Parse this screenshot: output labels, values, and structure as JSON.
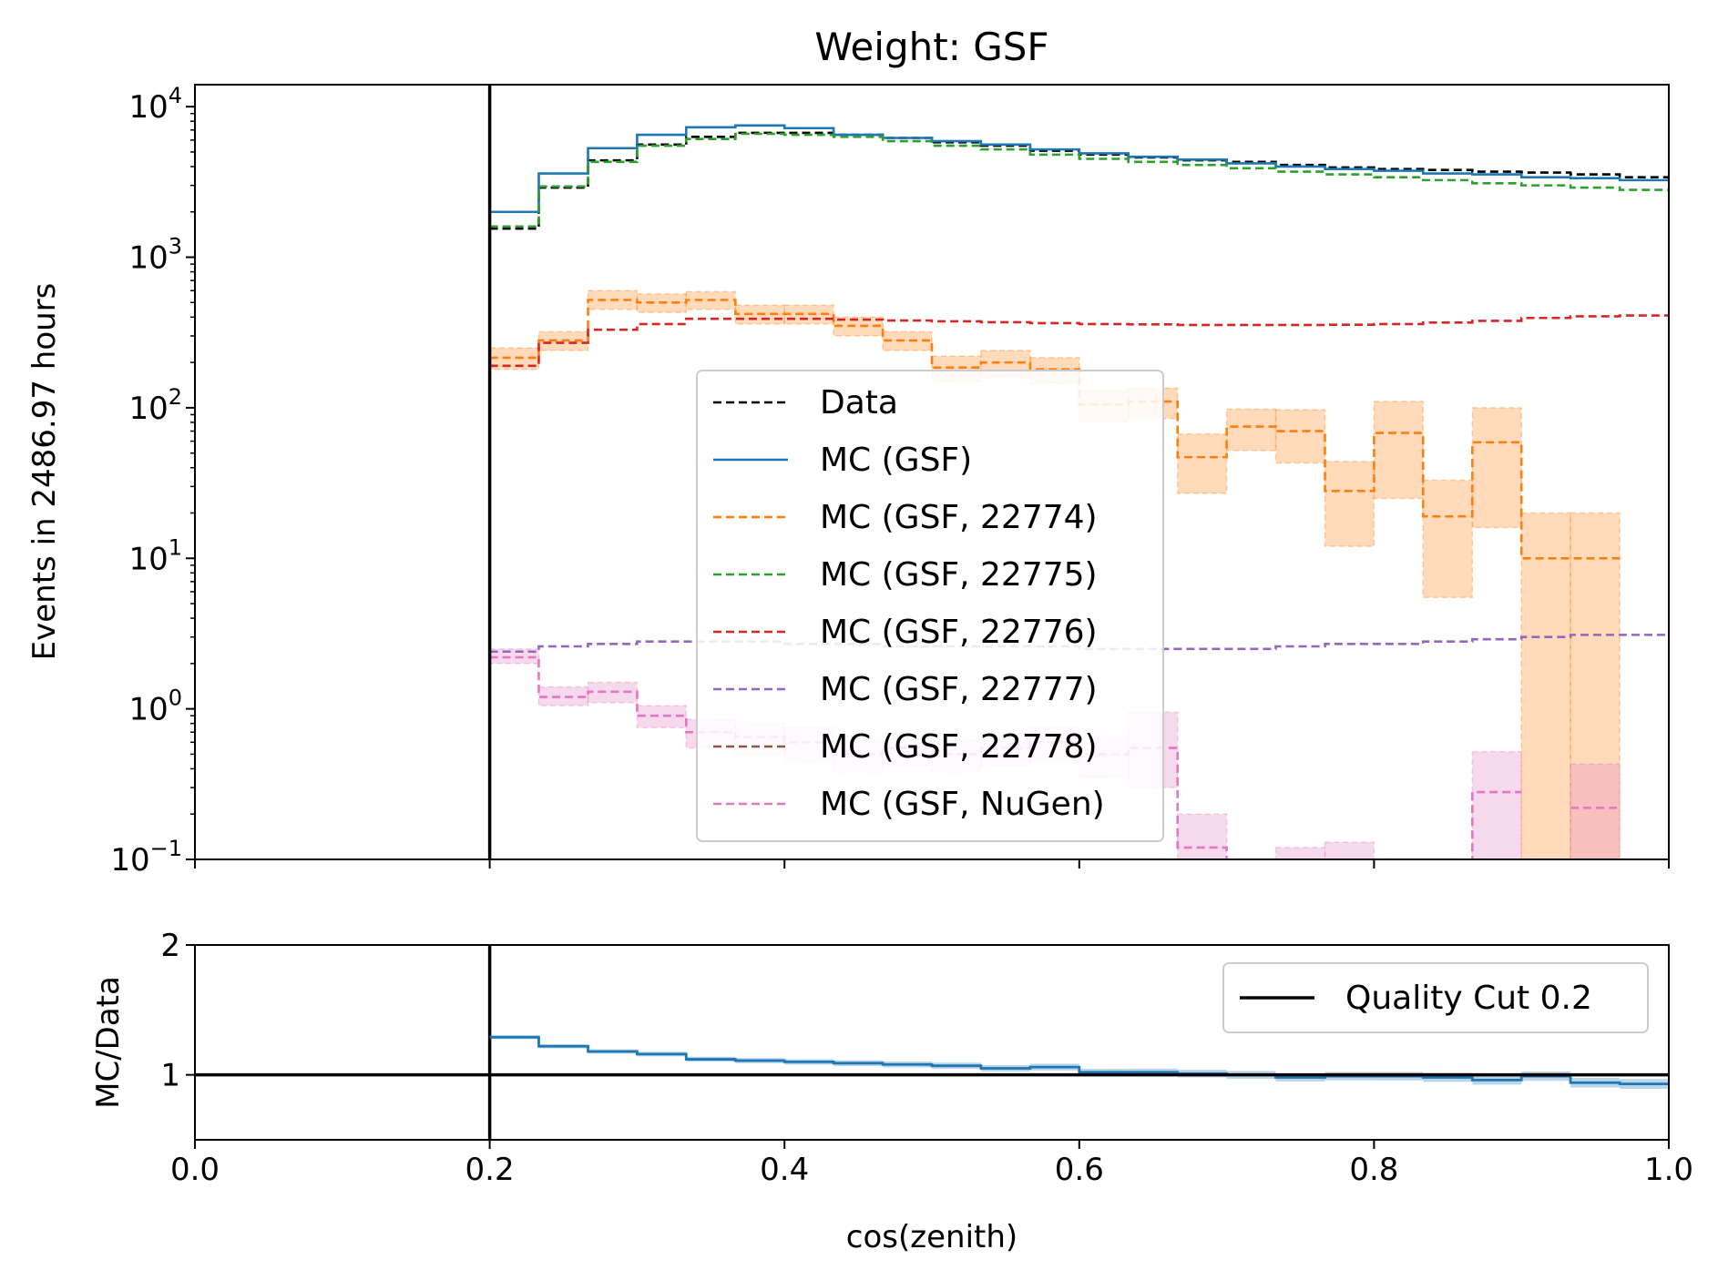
{
  "chart_data": [
    {
      "type": "line",
      "title": "Weight: GSF",
      "ylabel": "Events in 2486.97 hours",
      "xlabel": "",
      "xlim": [
        0.0,
        1.0
      ],
      "ylim": [
        0.1,
        14000
      ],
      "yscale": "log",
      "grid": false,
      "legend_position": "center",
      "y_tick_labels": [
        "10^4",
        "10^3",
        "10^2",
        "10^1",
        "10^0",
        "10^-1"
      ],
      "bin_edges": [
        0.2,
        0.2333,
        0.2667,
        0.3,
        0.3333,
        0.3667,
        0.4,
        0.4333,
        0.4667,
        0.5,
        0.5333,
        0.5667,
        0.6,
        0.6333,
        0.6667,
        0.7,
        0.7333,
        0.7667,
        0.8,
        0.8333,
        0.8667,
        0.9,
        0.9333,
        0.9667,
        1.0
      ],
      "series": [
        {
          "name": "Data",
          "color": "#000000",
          "dashed": true,
          "values": [
            1550,
            2900,
            4400,
            5600,
            6300,
            6700,
            6700,
            6500,
            6200,
            5800,
            5500,
            5100,
            4800,
            4600,
            4400,
            4300,
            4100,
            3950,
            3850,
            3800,
            3700,
            3650,
            3550,
            3400
          ]
        },
        {
          "name": "MC (GSF)",
          "color": "#1f77b4",
          "dashed": false,
          "values": [
            2000,
            3600,
            5300,
            6500,
            7300,
            7500,
            7200,
            6500,
            6200,
            5900,
            5600,
            5200,
            4900,
            4650,
            4450,
            4200,
            4000,
            3850,
            3750,
            3600,
            3550,
            3400,
            3350,
            3250
          ]
        },
        {
          "name": "MC (GSF, 22774)",
          "color": "#ff7f0e",
          "dashed": true,
          "values": [
            215,
            280,
            520,
            500,
            520,
            420,
            420,
            350,
            280,
            185,
            200,
            180,
            105,
            110,
            47,
            75,
            70,
            28,
            68,
            19,
            59,
            10,
            10,
            null
          ],
          "band_low": [
            180,
            240,
            450,
            430,
            450,
            360,
            360,
            300,
            240,
            150,
            160,
            145,
            80,
            85,
            27,
            52,
            43,
            12,
            25,
            5.5,
            16,
            0.1,
            0.1,
            null
          ],
          "band_high": [
            250,
            320,
            600,
            570,
            590,
            480,
            480,
            400,
            320,
            220,
            240,
            215,
            130,
            135,
            67,
            98,
            97,
            44,
            110,
            33,
            100,
            20,
            20,
            null
          ]
        },
        {
          "name": "MC (GSF, 22775)",
          "color": "#2ca02c",
          "dashed": true,
          "values": [
            1600,
            2950,
            4300,
            5500,
            6100,
            6600,
            6500,
            6300,
            5900,
            5500,
            5200,
            4800,
            4500,
            4300,
            4100,
            3900,
            3700,
            3550,
            3400,
            3250,
            3100,
            3000,
            2900,
            2800
          ]
        },
        {
          "name": "MC (GSF, 22776)",
          "color": "#d62728",
          "dashed": true,
          "values": [
            190,
            270,
            330,
            360,
            390,
            390,
            390,
            385,
            380,
            375,
            370,
            365,
            360,
            358,
            355,
            355,
            355,
            356,
            360,
            368,
            378,
            395,
            405,
            410
          ]
        },
        {
          "name": "MC (GSF, 22777)",
          "color": "#9467bd",
          "dashed": true,
          "values": [
            2.4,
            2.6,
            2.7,
            2.8,
            2.8,
            2.8,
            2.7,
            2.7,
            2.6,
            2.6,
            2.6,
            2.6,
            2.5,
            2.5,
            2.5,
            2.5,
            2.6,
            2.7,
            2.7,
            2.8,
            2.9,
            3.0,
            3.1,
            3.1
          ]
        },
        {
          "name": "MC (GSF, 22778)",
          "color": "#8c564b",
          "dashed": true,
          "values": [
            null,
            null,
            null,
            null,
            null,
            null,
            null,
            null,
            null,
            null,
            null,
            null,
            null,
            null,
            null,
            null,
            null,
            null,
            null,
            null,
            null,
            null,
            null,
            null
          ]
        },
        {
          "name": "MC (GSF, NuGen)",
          "color": "#e377c2",
          "dashed": true,
          "values": [
            2.2,
            1.2,
            1.3,
            0.9,
            0.7,
            0.65,
            0.6,
            0.5,
            0.55,
            0.5,
            0.55,
            0.6,
            0.5,
            0.55,
            0.12,
            0.07,
            0.07,
            0.09,
            0.06,
            0.07,
            0.28,
            null,
            0.22,
            null
          ],
          "band_low": [
            2.0,
            1.05,
            1.1,
            0.75,
            0.55,
            0.5,
            0.45,
            0.38,
            0.42,
            0.38,
            0.42,
            0.45,
            0.35,
            0.3,
            0.06,
            0.04,
            0.04,
            0.05,
            0.03,
            0.04,
            0.1,
            null,
            0.1,
            null
          ],
          "band_high": [
            2.5,
            1.4,
            1.5,
            1.05,
            0.85,
            0.8,
            0.75,
            0.62,
            0.68,
            0.62,
            0.68,
            0.75,
            0.65,
            0.95,
            0.2,
            0.1,
            0.12,
            0.13,
            0.1,
            0.1,
            0.52,
            null,
            0.43,
            null
          ]
        }
      ],
      "legend": [
        "Data",
        "MC (GSF)",
        "MC (GSF, 22774)",
        "MC (GSF, 22775)",
        "MC (GSF, 22776)",
        "MC (GSF, 22777)",
        "MC (GSF, 22778)",
        "MC (GSF, NuGen)"
      ]
    },
    {
      "type": "line",
      "ylabel": "MC/Data",
      "xlabel": "cos(zenith)",
      "xlim": [
        0.0,
        1.0
      ],
      "ylim": [
        0.5,
        2.0
      ],
      "y_ticks": [
        1,
        2
      ],
      "x_ticks": [
        0.0,
        0.2,
        0.4,
        0.6,
        0.8,
        1.0
      ],
      "x_tick_labels": [
        "0.0",
        "0.2",
        "0.4",
        "0.6",
        "0.8",
        "1.0"
      ],
      "grid": false,
      "legend_position": "upper right",
      "reference_line": 1.0,
      "bin_edges": [
        0.2,
        0.2333,
        0.2667,
        0.3,
        0.3333,
        0.3667,
        0.4,
        0.4333,
        0.4667,
        0.5,
        0.5333,
        0.5667,
        0.6,
        0.6333,
        0.6667,
        0.7,
        0.7333,
        0.7667,
        0.8,
        0.8333,
        0.8667,
        0.9,
        0.9333,
        0.9667,
        1.0
      ],
      "ratio": {
        "color": "#1f77b4",
        "values": [
          1.29,
          1.22,
          1.18,
          1.16,
          1.12,
          1.11,
          1.1,
          1.09,
          1.08,
          1.07,
          1.05,
          1.06,
          1.02,
          1.02,
          1.01,
          1.0,
          0.98,
          0.99,
          0.99,
          0.98,
          0.96,
          0.99,
          0.94,
          0.93
        ]
      },
      "quality_cut": {
        "x": 0.2,
        "label": "Quality Cut 0.2",
        "color": "#000000"
      }
    }
  ]
}
